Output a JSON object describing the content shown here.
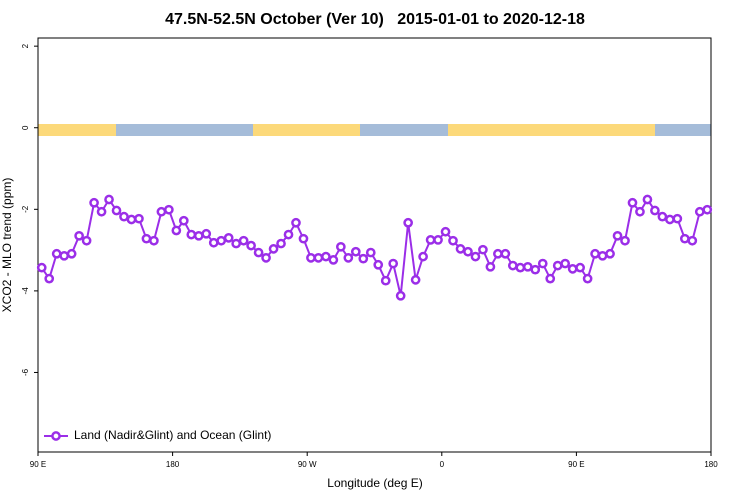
{
  "chart_data": {
    "type": "line",
    "title": "47.5N-52.5N October (Ver 10)   2015-01-01 to 2020-12-18",
    "x_label": "Longitude (deg E)",
    "y_label": "XCO2 - MLO trend (ppm)",
    "xlim": [
      90,
      540
    ],
    "ylim": [
      -7.95,
      2.2
    ],
    "xticks": [
      {
        "value": 90,
        "label": "90 E"
      },
      180,
      {
        "value": 270,
        "label": "90 W"
      },
      {
        "value": 360,
        "label": "0"
      },
      {
        "value": 450,
        "label": "90 E"
      },
      {
        "value": 540,
        "label": "180"
      }
    ],
    "yticks": [
      2,
      0,
      -2,
      -4,
      -6
    ],
    "legend": "bottom-left",
    "series": [
      {
        "name": "Land (Nadir&Glint) and Ocean (Glint)",
        "color": "#9b2ee8",
        "x": [
          92.5,
          97.5,
          102.5,
          107.5,
          112.5,
          117.5,
          122.5,
          127.5,
          132.5,
          137.5,
          142.5,
          147.5,
          152.5,
          157.5,
          162.5,
          167.5,
          172.5,
          177.5,
          182.5,
          187.5,
          192.5,
          197.5,
          202.5,
          207.5,
          212.5,
          217.5,
          222.5,
          227.5,
          232.5,
          237.5,
          242.5,
          247.5,
          252.5,
          257.5,
          262.5,
          267.5,
          272.5,
          277.5,
          282.5,
          287.5,
          292.5,
          297.5,
          302.5,
          307.5,
          312.5,
          317.5,
          322.5,
          327.5,
          332.5,
          337.5,
          342.5,
          347.5,
          352.5,
          357.5,
          362.5,
          367.5,
          372.5,
          377.5,
          382.5,
          387.5,
          392.5,
          397.5,
          402.5,
          407.5,
          412.5,
          417.5,
          422.5,
          427.5,
          432.5,
          437.5,
          442.5,
          447.5,
          452.5,
          457.5,
          462.5,
          467.5,
          472.5,
          477.5,
          482.5,
          487.5,
          492.5,
          497.5,
          502.5,
          507.5,
          512.5,
          517.5,
          522.5,
          527.5,
          532.5,
          537.5
        ],
        "values": [
          -3.43,
          -3.7,
          -3.09,
          -3.14,
          -3.09,
          -2.65,
          -2.77,
          -1.84,
          -2.06,
          -1.76,
          -2.03,
          -2.18,
          -2.25,
          -2.23,
          -2.72,
          -2.77,
          -2.06,
          -2.01,
          -2.52,
          -2.28,
          -2.62,
          -2.65,
          -2.6,
          -2.82,
          -2.77,
          -2.7,
          -2.84,
          -2.77,
          -2.89,
          -3.06,
          -3.19,
          -2.97,
          -2.84,
          -2.62,
          -2.33,
          -2.72,
          -3.19,
          -3.19,
          -3.16,
          -3.24,
          -2.92,
          -3.19,
          -3.04,
          -3.21,
          -3.06,
          -3.36,
          -3.75,
          -3.33,
          -4.12,
          -2.33,
          -3.73,
          -3.16,
          -2.75,
          -2.75,
          -2.55,
          -2.77,
          -2.97,
          -3.04,
          -3.16,
          -2.99,
          -3.41,
          -3.09,
          -3.09,
          -3.38,
          -3.43,
          -3.41,
          -3.48,
          -3.33,
          -3.7,
          -3.38,
          -3.33,
          -3.46,
          -3.43,
          -3.7,
          -3.09,
          -3.14,
          -3.09,
          -2.65,
          -2.77,
          -1.84,
          -2.06,
          -1.76,
          -2.03,
          -2.18,
          -2.25,
          -2.23,
          -2.72,
          -2.77,
          -2.06,
          -2.01
        ]
      }
    ]
  }
}
